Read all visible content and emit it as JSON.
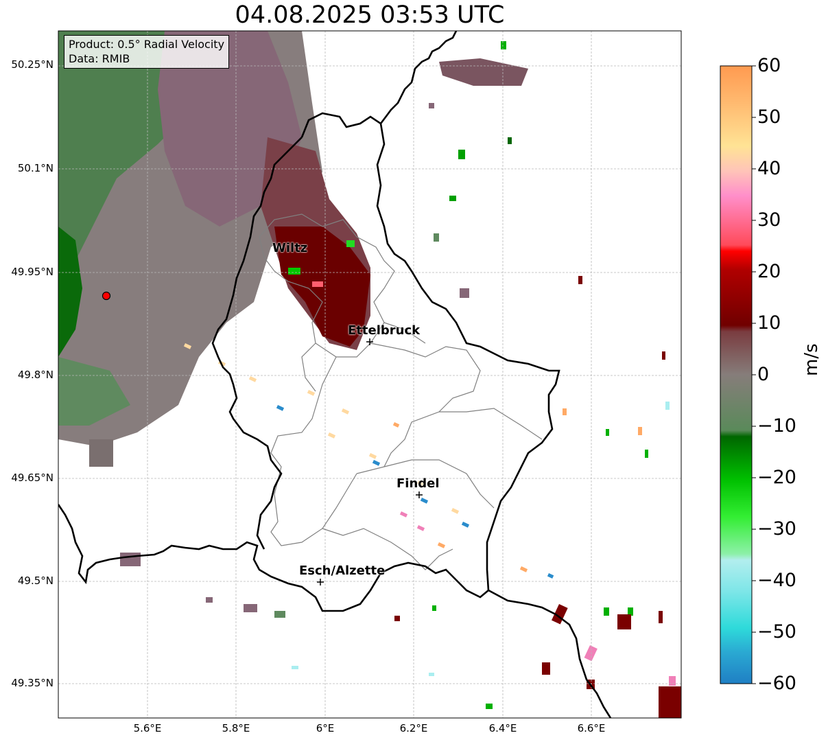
{
  "title": "04.08.2025 03:53 UTC",
  "info": {
    "product": "Product: 0.5° Radial Velocity",
    "data": "Data: RMIB"
  },
  "lat_labels": [
    "50.25°N",
    "50.1°N",
    "49.95°N",
    "49.8°N",
    "49.65°N",
    "49.5°N",
    "49.35°N"
  ],
  "lon_labels": [
    "5.6°E",
    "5.8°E",
    "6°E",
    "6.2°E",
    "6.4°E",
    "6.6°E"
  ],
  "cities": [
    {
      "name": "Wiltz"
    },
    {
      "name": "Ettelbruck"
    },
    {
      "name": "Findel"
    },
    {
      "name": "Esch/Alzette"
    }
  ],
  "colorbar": {
    "label": "m/s",
    "ticks": [
      "60",
      "50",
      "40",
      "30",
      "20",
      "10",
      "0",
      "−10",
      "−20",
      "−30",
      "−40",
      "−50",
      "−60"
    ],
    "min": -60,
    "max": 60,
    "colors": [
      "#1f7fc4",
      "#2fc0d0",
      "#2edada",
      "#aaeef0",
      "#8df0a8",
      "#33ee33",
      "#00c000",
      "#006600",
      "#5f8a5f",
      "#857373",
      "#7a1010",
      "#aa0000",
      "#ee0000",
      "#ff5f6f",
      "#ff8fc8",
      "#ffc0b5",
      "#ffe090",
      "#ffb065",
      "#ff9a50"
    ]
  }
}
